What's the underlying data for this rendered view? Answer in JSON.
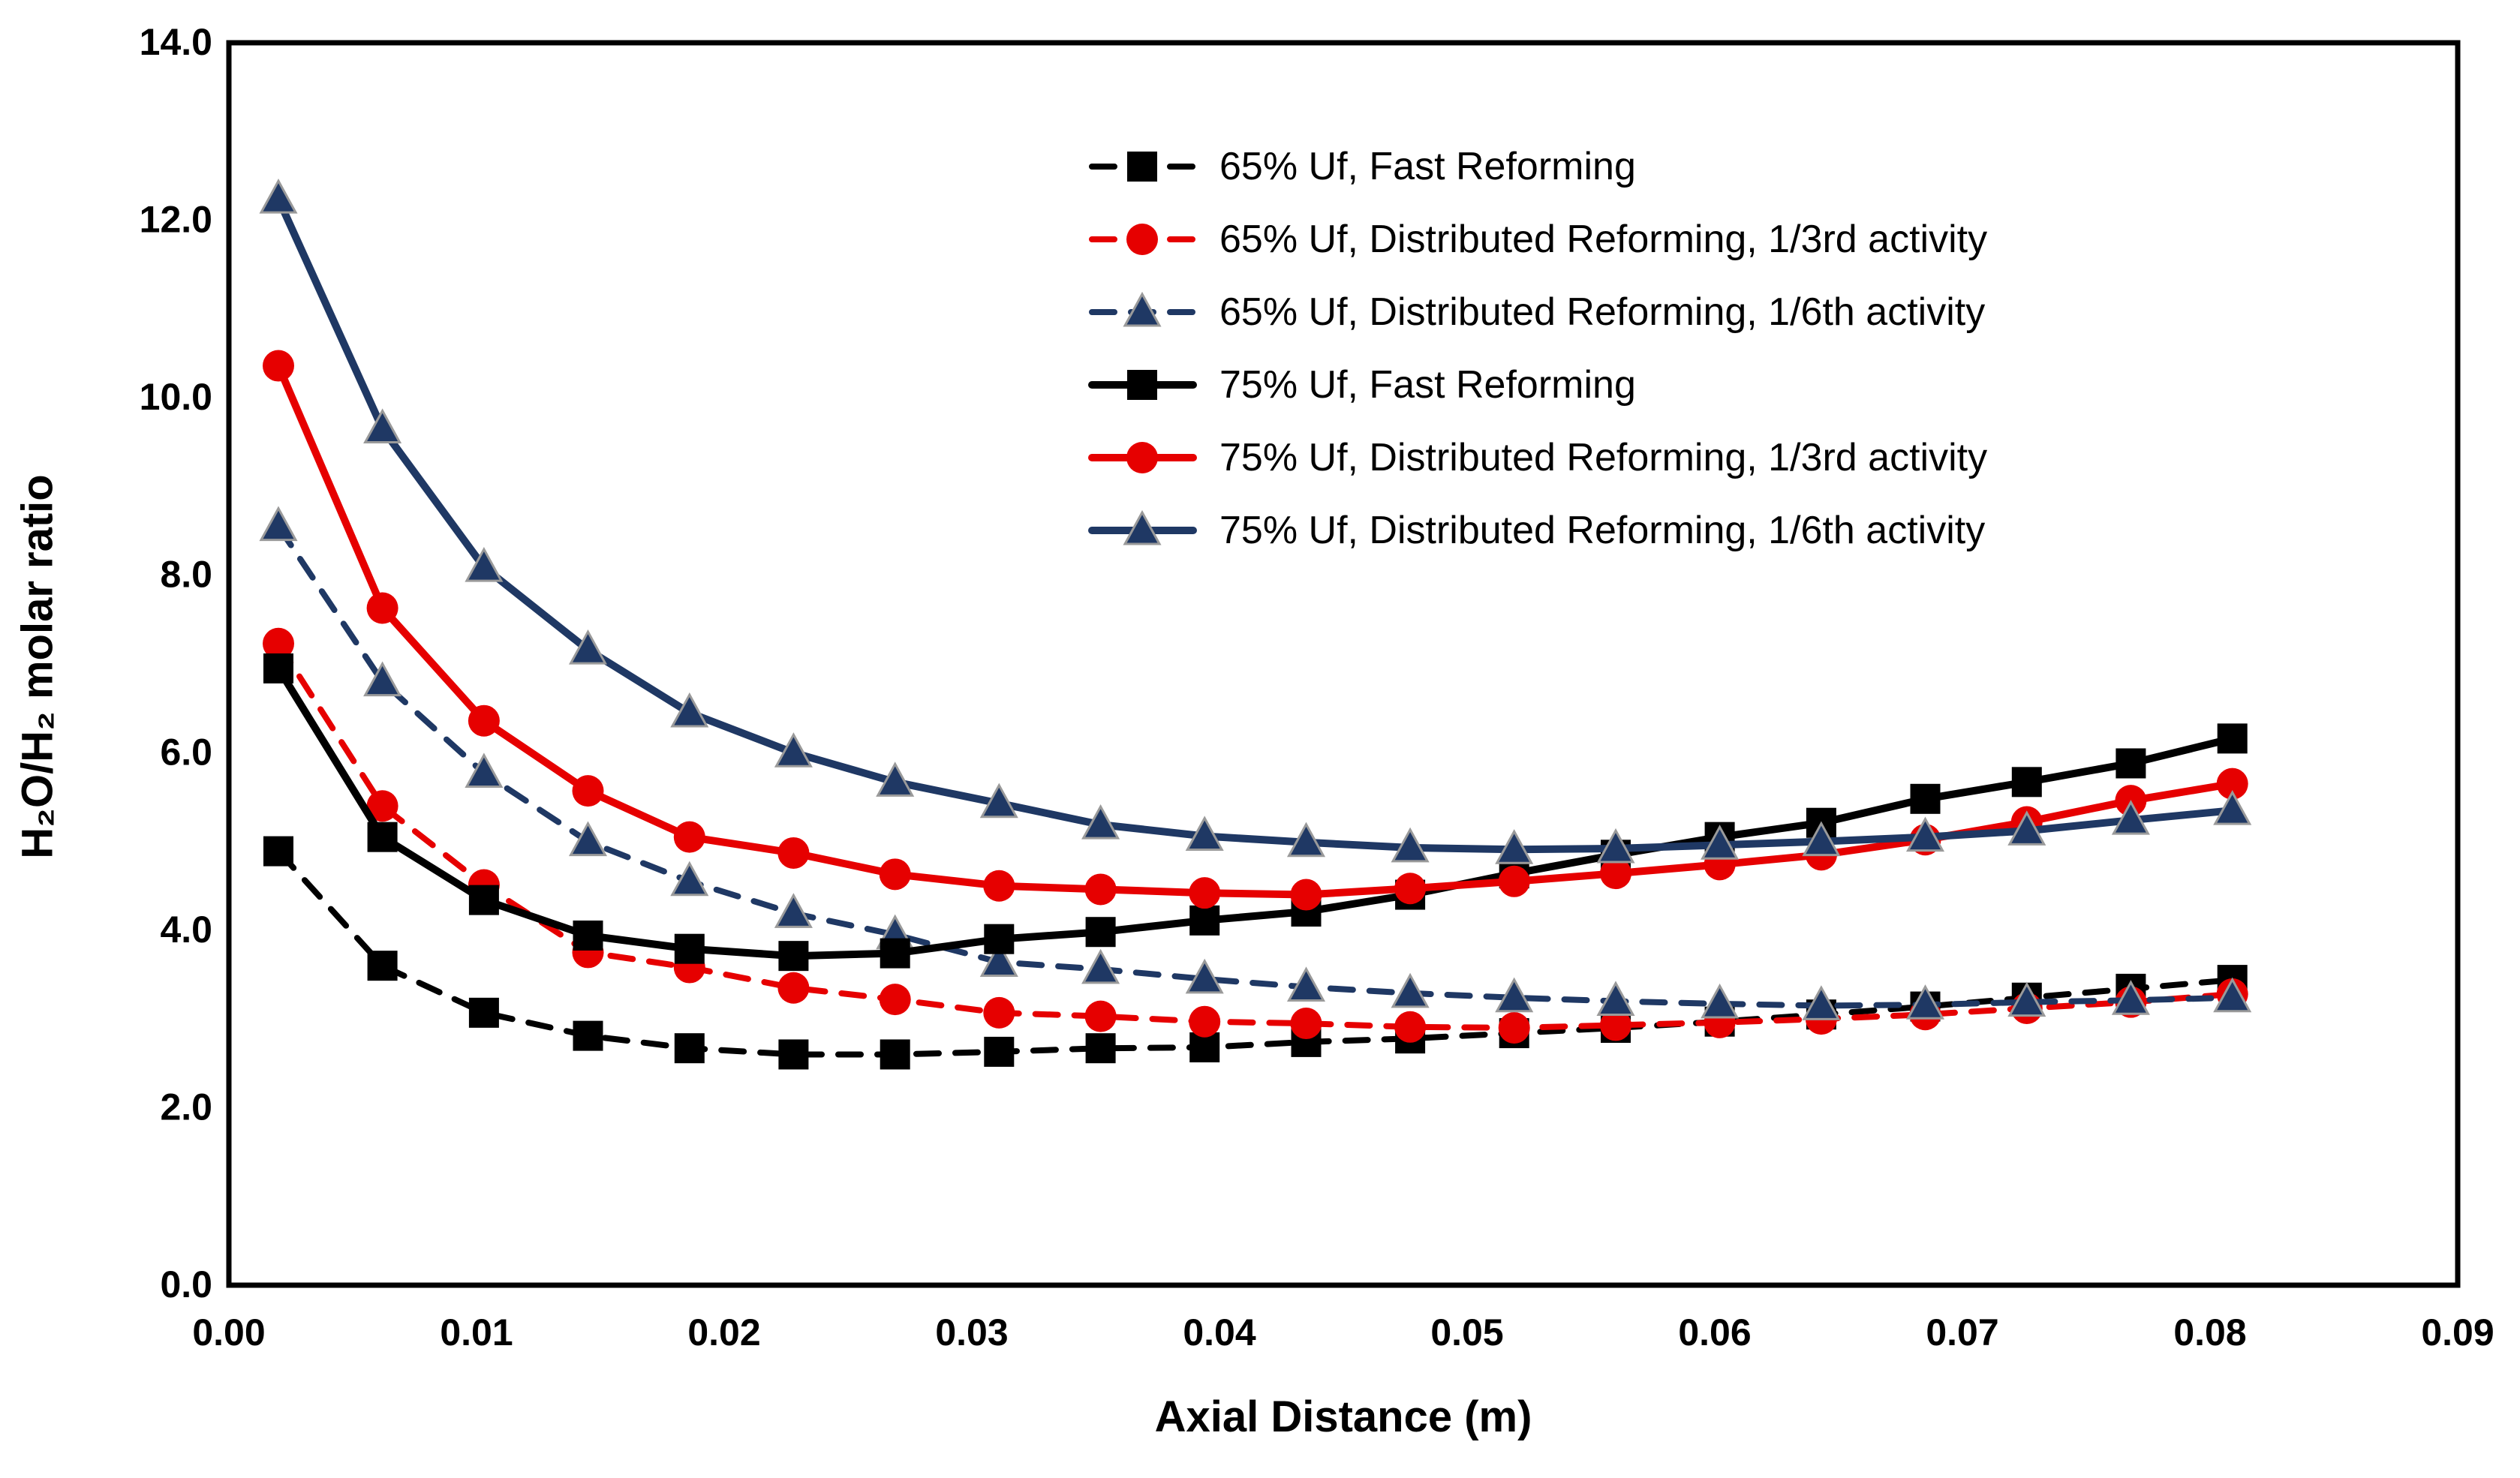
{
  "chart_data": {
    "type": "line",
    "title": "",
    "xlabel": "Axial Distance (m)",
    "ylabel": "H₂O/H₂ molar ratio",
    "xlim": [
      0.0,
      0.09
    ],
    "ylim": [
      0.0,
      14.0
    ],
    "grid": false,
    "legend_position": "upper-right-inside",
    "xtick_labels": [
      "0.00",
      "0.01",
      "0.02",
      "0.03",
      "0.04",
      "0.05",
      "0.06",
      "0.07",
      "0.08",
      "0.09"
    ],
    "xtick_values": [
      0.0,
      0.01,
      0.02,
      0.03,
      0.04,
      0.05,
      0.06,
      0.07,
      0.08,
      0.09
    ],
    "ytick_labels": [
      "0.0",
      "2.0",
      "4.0",
      "6.0",
      "8.0",
      "10.0",
      "12.0",
      "14.0"
    ],
    "ytick_values": [
      0.0,
      2.0,
      4.0,
      6.0,
      8.0,
      10.0,
      12.0,
      14.0
    ],
    "x": [
      0.002,
      0.0062,
      0.0103,
      0.0145,
      0.0186,
      0.0228,
      0.0269,
      0.0311,
      0.0352,
      0.0394,
      0.0435,
      0.0477,
      0.0519,
      0.056,
      0.0602,
      0.0643,
      0.0685,
      0.0726,
      0.0768,
      0.0809
    ],
    "series": [
      {
        "name": "65% Uf, Fast Reforming",
        "color": "#000000",
        "line_style": "dashed",
        "marker": "square",
        "values": [
          4.89,
          3.6,
          3.07,
          2.81,
          2.67,
          2.6,
          2.6,
          2.63,
          2.67,
          2.68,
          2.74,
          2.78,
          2.84,
          2.9,
          2.97,
          3.05,
          3.14,
          3.24,
          3.34,
          3.44
        ]
      },
      {
        "name": "65% Uf, Distributed Reforming, 1/3rd activity",
        "color": "#e60000",
        "line_style": "dashed",
        "marker": "circle",
        "values": [
          7.23,
          5.4,
          4.51,
          3.75,
          3.58,
          3.35,
          3.22,
          3.07,
          3.03,
          2.97,
          2.95,
          2.91,
          2.9,
          2.93,
          2.96,
          3.0,
          3.05,
          3.12,
          3.19,
          3.28
        ]
      },
      {
        "name": "65% Uf, Distributed Reforming, 1/6th activity",
        "color": "#1f3864",
        "line_style": "dashed",
        "marker": "triangle",
        "values": [
          8.55,
          6.8,
          5.77,
          5.0,
          4.55,
          4.19,
          3.95,
          3.64,
          3.56,
          3.45,
          3.36,
          3.29,
          3.24,
          3.2,
          3.17,
          3.15,
          3.16,
          3.19,
          3.21,
          3.24
        ]
      },
      {
        "name": "75% Uf, Fast Reforming",
        "color": "#000000",
        "line_style": "solid",
        "marker": "square",
        "values": [
          6.95,
          5.05,
          4.34,
          3.94,
          3.79,
          3.71,
          3.74,
          3.9,
          3.98,
          4.11,
          4.21,
          4.4,
          4.64,
          4.85,
          5.05,
          5.21,
          5.48,
          5.67,
          5.88,
          6.16
        ]
      },
      {
        "name": "75% Uf, Distributed Reforming, 1/3rd activity",
        "color": "#e60000",
        "line_style": "solid",
        "marker": "circle",
        "values": [
          10.36,
          7.63,
          6.36,
          5.57,
          5.05,
          4.87,
          4.63,
          4.5,
          4.46,
          4.42,
          4.4,
          4.47,
          4.55,
          4.64,
          4.74,
          4.85,
          5.02,
          5.22,
          5.46,
          5.65
        ]
      },
      {
        "name": "75% Uf, Distributed Reforming, 1/6th activity",
        "color": "#1f3864",
        "line_style": "solid",
        "marker": "triangle",
        "values": [
          12.24,
          9.65,
          8.09,
          7.16,
          6.45,
          6.0,
          5.67,
          5.43,
          5.19,
          5.06,
          4.99,
          4.93,
          4.91,
          4.92,
          4.96,
          5.0,
          5.05,
          5.12,
          5.24,
          5.35
        ]
      }
    ]
  }
}
